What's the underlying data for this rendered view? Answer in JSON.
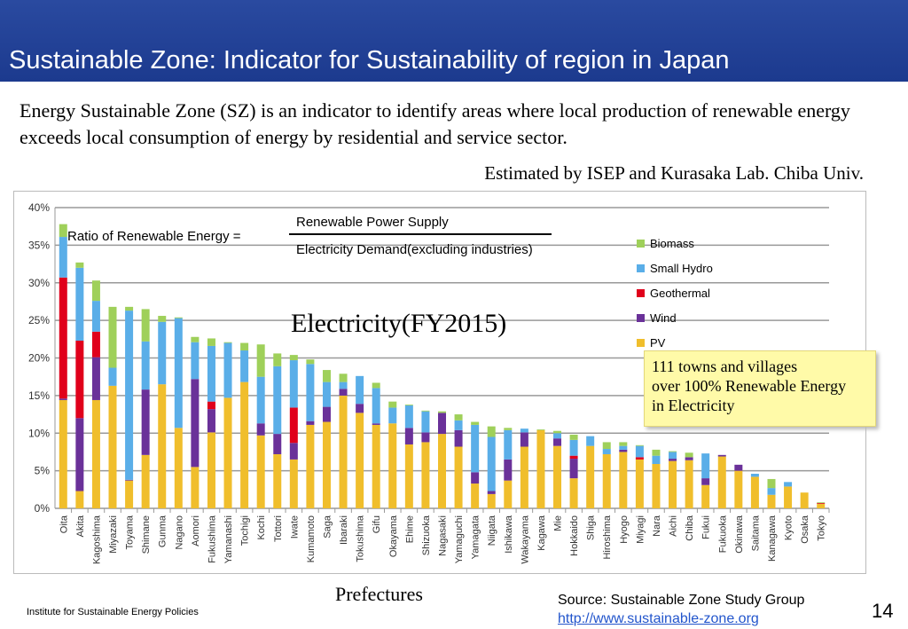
{
  "header": {
    "title": "Sustainable Zone: Indicator for Sustainability of region in Japan"
  },
  "intro": "Energy Sustainable Zone (SZ) is an indicator to identify areas where local production of renewable energy exceeds local consumption of energy by residential and service sector.",
  "estimated_by": "Estimated by ISEP and Kurasaka Lab. Chiba Univ.",
  "formula": {
    "label": "Ratio of Renewable Energy =",
    "numerator": "Renewable Power Supply",
    "denominator": "Electricity Demand(excluding industries)"
  },
  "overlay_title": "Electricity(FY2015)",
  "note": {
    "lines": [
      "111 towns and villages",
      "over 100% Renewable Energy",
      "in Electricity"
    ]
  },
  "footer": {
    "institute": "Institute for Sustainable Energy Policies",
    "source": "Source: Sustainable Zone Study Group",
    "url": "http://www.sustainable-zone.org",
    "page": "14"
  },
  "chart_data": {
    "type": "bar",
    "stacked": true,
    "title": "",
    "xlabel": "Prefectures",
    "ylabel": "",
    "ylim": [
      0,
      40
    ],
    "yticks": [
      "0%",
      "5%",
      "10%",
      "15%",
      "20%",
      "25%",
      "30%",
      "35%",
      "40%"
    ],
    "grid": true,
    "legend": "right",
    "categories": [
      "Oita",
      "Akita",
      "Kagoshima",
      "Miyazaki",
      "Toyama",
      "Shimane",
      "Gunma",
      "Nagano",
      "Aomori",
      "Fukushima",
      "Yamanashi",
      "Tochigi",
      "Kochi",
      "Tottori",
      "Iwate",
      "Kumamoto",
      "Saga",
      "Ibaraki",
      "Tokushima",
      "Gifu",
      "Okayama",
      "Ehime",
      "Shizuoka",
      "Nagasaki",
      "Yamaguchi",
      "Yamagata",
      "Niigata",
      "Ishikawa",
      "Wakayama",
      "Kagawa",
      "Mie",
      "Hokkaido",
      "Shiga",
      "Hiroshima",
      "Hyogo",
      "Miyagi",
      "Nara",
      "Aichi",
      "Chiba",
      "Fukui",
      "Fukuoka",
      "Okinawa",
      "Saitama",
      "Kanagawa",
      "Kyoto",
      "Osaka",
      "Tokyo"
    ],
    "series": [
      {
        "name": "PV",
        "color": "#f0be2c",
        "values": [
          14.4,
          2.3,
          14.4,
          16.3,
          3.7,
          7.1,
          16.5,
          10.7,
          5.5,
          10.1,
          14.7,
          16.8,
          9.7,
          7.2,
          6.5,
          11.1,
          11.5,
          15.0,
          12.7,
          11.1,
          11.3,
          8.5,
          8.8,
          9.9,
          8.2,
          3.3,
          1.9,
          3.7,
          8.2,
          10.4,
          8.3,
          4.0,
          8.3,
          7.2,
          7.5,
          6.5,
          5.9,
          6.3,
          6.4,
          3.1,
          6.9,
          5.0,
          4.2,
          1.8,
          2.9,
          2.1,
          0.6
        ]
      },
      {
        "name": "Wind",
        "color": "#6a3199",
        "values": [
          0.2,
          9.7,
          5.7,
          0,
          0.1,
          8.7,
          0,
          0,
          11.7,
          3.1,
          0,
          0,
          1.6,
          2.7,
          2.2,
          0.5,
          2.0,
          0.9,
          1.2,
          0.2,
          0,
          2.2,
          1.3,
          2.8,
          2.2,
          1.5,
          0.4,
          2.8,
          1.9,
          0,
          1.0,
          2.6,
          0,
          0,
          0.3,
          0,
          0,
          0.3,
          0.4,
          0.9,
          0.2,
          0.8,
          0,
          0,
          0,
          0,
          0
        ]
      },
      {
        "name": "Geothermal",
        "color": "#e0001b",
        "values": [
          16.1,
          10.3,
          3.4,
          0,
          0,
          0,
          0,
          0,
          0,
          1.0,
          0,
          0,
          0,
          0,
          4.7,
          0,
          0,
          0,
          0,
          0,
          0,
          0,
          0,
          0,
          0,
          0,
          0,
          0,
          0,
          0,
          0,
          0.4,
          0,
          0,
          0,
          0.3,
          0,
          0,
          0,
          0,
          0,
          0,
          0,
          0,
          0,
          0,
          0.1
        ]
      },
      {
        "name": "Small Hydro",
        "color": "#5aaee8",
        "values": [
          5.4,
          9.7,
          4.1,
          2.4,
          22.5,
          6.4,
          8.3,
          14.6,
          4.9,
          7.4,
          7.3,
          4.2,
          6.2,
          9.0,
          6.3,
          7.6,
          3.3,
          0.9,
          3.7,
          4.7,
          2.1,
          3.0,
          2.8,
          0,
          1.3,
          6.3,
          7.2,
          3.9,
          0.5,
          0,
          0.7,
          2.1,
          1.3,
          0.7,
          0.5,
          1.5,
          1.1,
          0.9,
          0,
          3.3,
          0,
          0,
          0.4,
          0.9,
          0.6,
          0,
          0
        ]
      },
      {
        "name": "Biomass",
        "color": "#9fd05a",
        "values": [
          1.7,
          0.7,
          2.7,
          8.1,
          0.5,
          4.3,
          0.8,
          0.1,
          0.7,
          1.0,
          0.1,
          1.0,
          4.3,
          1.7,
          0.7,
          0.6,
          1.6,
          1.1,
          0,
          0.7,
          0.8,
          0.1,
          0.1,
          0.2,
          0.8,
          0.4,
          1.4,
          0.3,
          0,
          0.1,
          0.3,
          0.7,
          0,
          0.9,
          0.5,
          0.1,
          0.8,
          0.1,
          0.6,
          0,
          0,
          0,
          0,
          1.2,
          0,
          0,
          0.1
        ]
      }
    ]
  }
}
